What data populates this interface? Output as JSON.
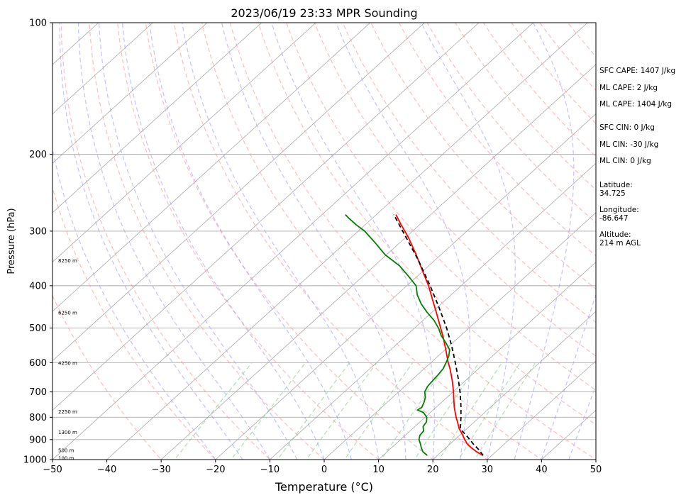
{
  "chart_data": {
    "type": "line",
    "title": "2023/06/19 23:33 MPR Sounding",
    "xlabel": "Temperature (°C)",
    "ylabel": "Pressure (hPa)",
    "xlim": [
      -50,
      50
    ],
    "ylim": [
      1000,
      100
    ],
    "y_scale": "log",
    "skew": true,
    "grid": true,
    "x_ticks": [
      -50,
      -40,
      -30,
      -20,
      -10,
      0,
      10,
      20,
      30,
      40,
      50
    ],
    "x_tick_labels": [
      "−50",
      "−40",
      "−30",
      "−20",
      "−10",
      "0",
      "10",
      "20",
      "30",
      "40",
      "50"
    ],
    "y_ticks": [
      100,
      200,
      300,
      400,
      500,
      600,
      700,
      800,
      900,
      1000
    ],
    "y_tick_labels": [
      "100",
      "200",
      "300",
      "400",
      "500",
      "600",
      "700",
      "800",
      "900",
      "1000"
    ],
    "series": [
      {
        "color": "#ff0000",
        "style": "solid",
        "pressure": [
          978,
          960,
          940,
          920,
          900,
          880,
          850,
          820,
          800,
          760,
          720,
          700,
          660,
          620,
          600,
          560,
          520,
          500,
          460,
          430,
          400,
          370,
          340,
          310,
          290,
          275
        ],
        "temperature": [
          28.4,
          26.5,
          24.7,
          23.1,
          21.8,
          20.6,
          18.6,
          16.9,
          15.7,
          13.4,
          11.2,
          10.1,
          7.6,
          4.8,
          3.2,
          0.1,
          -3.3,
          -5.2,
          -9.2,
          -12.5,
          -16.0,
          -20.1,
          -24.5,
          -29.5,
          -33.4,
          -36.4
        ]
      },
      {
        "color": "#008000",
        "style": "solid",
        "pressure": [
          978,
          960,
          940,
          920,
          900,
          880,
          860,
          840,
          820,
          800,
          780,
          770,
          760,
          740,
          720,
          700,
          680,
          660,
          640,
          620,
          600,
          580,
          560,
          540,
          520,
          500,
          480,
          460,
          440,
          420,
          400,
          380,
          360,
          340,
          320,
          300,
          290,
          280,
          275
        ],
        "dewpoint": [
          18.1,
          16.6,
          15.5,
          14.5,
          13.4,
          12.7,
          12.5,
          11.5,
          11.2,
          10.3,
          8.7,
          7.1,
          7.4,
          6.8,
          6.0,
          4.8,
          4.2,
          4.0,
          3.8,
          3.5,
          2.8,
          2.0,
          0.8,
          -1.3,
          -3.6,
          -5.6,
          -8.0,
          -10.9,
          -13.7,
          -16.2,
          -18.3,
          -21.7,
          -25.4,
          -30.2,
          -34.3,
          -38.8,
          -41.7,
          -44.4,
          -45.7
        ]
      },
      {
        "color": "#000000",
        "style": "dashed",
        "pressure": [
          978,
          950,
          920,
          890,
          860,
          850,
          800,
          750,
          700,
          650,
          600,
          550,
          500,
          450,
          400,
          350,
          300,
          275
        ],
        "temperature": [
          28.4,
          26.5,
          24.2,
          22.0,
          19.6,
          18.8,
          16.6,
          14.1,
          11.3,
          8.1,
          4.5,
          0.5,
          -4.1,
          -9.5,
          -15.7,
          -23.0,
          -31.8,
          -36.8
        ]
      }
    ],
    "height_labels": [
      {
        "text": "100 m",
        "pressure": 990
      },
      {
        "text": "500 m",
        "pressure": 950
      },
      {
        "text": "1300 m",
        "pressure": 865
      },
      {
        "text": "2250 m",
        "pressure": 775
      },
      {
        "text": "4250 m",
        "pressure": 600
      },
      {
        "text": "6250 m",
        "pressure": 460
      },
      {
        "text": "8250 m",
        "pressure": 350
      }
    ],
    "colors": {
      "isotherm": "#aaaaaa",
      "grid": "#aaaaaa",
      "dry_adiabat": "#ff9999",
      "moist_adiabat": "#9999ff",
      "mixing_ratio": "#88cc88"
    }
  },
  "annotations": {
    "sfc_cape": "SFC CAPE: 1407 J/kg",
    "ml_cape_1": "ML CAPE: 2 J/kg",
    "ml_cape_2": "ML CAPE: 1404 J/kg",
    "sfc_cin": "SFC CIN: 0 J/kg",
    "ml_cin_1": "ML CIN: -30 J/kg",
    "ml_cin_2": "ML CIN: 0 J/kg",
    "latitude": "Latitude:\n34.725",
    "longitude": "Longitude:\n-86.647",
    "altitude": "Altitude:\n214 m AGL"
  }
}
